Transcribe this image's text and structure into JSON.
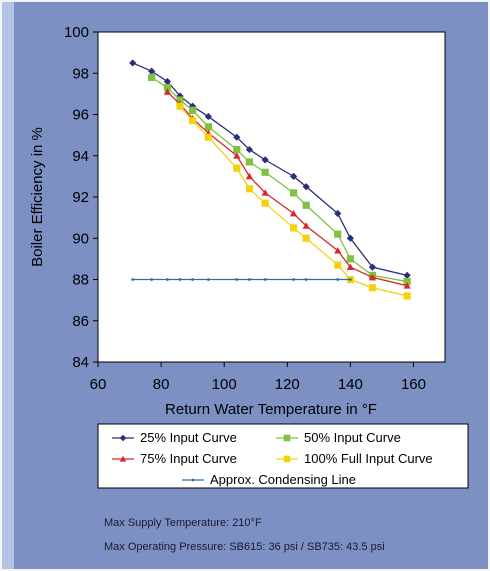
{
  "chart_data": {
    "type": "line",
    "xlabel": "Return Water Temperature in °F",
    "ylabel": "Boiler Efficiency in %",
    "xlim": [
      60,
      170
    ],
    "ylim": [
      84,
      100
    ],
    "xticks": [
      60,
      80,
      100,
      120,
      140,
      160
    ],
    "yticks": [
      84,
      86,
      88,
      90,
      92,
      94,
      96,
      98,
      100
    ],
    "grid": false,
    "legend_placement": "bottom",
    "series": [
      {
        "name": "25% Input Curve",
        "color": "#2a2f7a",
        "marker": "diamond",
        "x": [
          71,
          77,
          82,
          86,
          90,
          95,
          104,
          108,
          113,
          122,
          126,
          136,
          140,
          147,
          158
        ],
        "y": [
          98.5,
          98.1,
          97.6,
          96.9,
          96.4,
          95.9,
          94.9,
          94.3,
          93.8,
          93.0,
          92.5,
          91.2,
          90.0,
          88.6,
          88.2
        ]
      },
      {
        "name": "50% Input Curve",
        "color": "#7fc241",
        "marker": "square",
        "x": [
          77,
          82,
          86,
          90,
          95,
          104,
          108,
          113,
          122,
          126,
          136,
          140,
          147,
          158
        ],
        "y": [
          97.8,
          97.3,
          96.7,
          96.2,
          95.4,
          94.3,
          93.7,
          93.2,
          92.2,
          91.6,
          90.2,
          89.0,
          88.2,
          87.9
        ]
      },
      {
        "name": "75% Input Curve",
        "color": "#d8282b",
        "marker": "triangle",
        "x": [
          82,
          86,
          90,
          95,
          104,
          108,
          113,
          122,
          126,
          136,
          140,
          147,
          158
        ],
        "y": [
          97.1,
          96.5,
          95.8,
          95.1,
          94.0,
          93.0,
          92.2,
          91.2,
          90.6,
          89.4,
          88.6,
          88.1,
          87.7
        ]
      },
      {
        "name": "100% Full Input Curve",
        "color": "#f4d20e",
        "marker": "square",
        "x": [
          86,
          90,
          95,
          104,
          108,
          113,
          122,
          126,
          136,
          140,
          147,
          158
        ],
        "y": [
          96.4,
          95.7,
          94.9,
          93.4,
          92.4,
          91.7,
          90.5,
          90.0,
          88.7,
          88.0,
          87.6,
          87.2
        ]
      },
      {
        "name": "Approx. Condensing Line",
        "color": "#2f6da8",
        "marker": "dot",
        "x": [
          71,
          77,
          82,
          86,
          90,
          95,
          104,
          108,
          113,
          122,
          126,
          136,
          140
        ],
        "y": [
          88,
          88,
          88,
          88,
          88,
          88,
          88,
          88,
          88,
          88,
          88,
          88,
          88
        ]
      }
    ]
  },
  "notes": {
    "max_supply": "Max Supply Temperature: 210°F",
    "max_pressure": "Max Operating Pressure: SB615: 36 psi / SB735: 43.5 psi"
  }
}
